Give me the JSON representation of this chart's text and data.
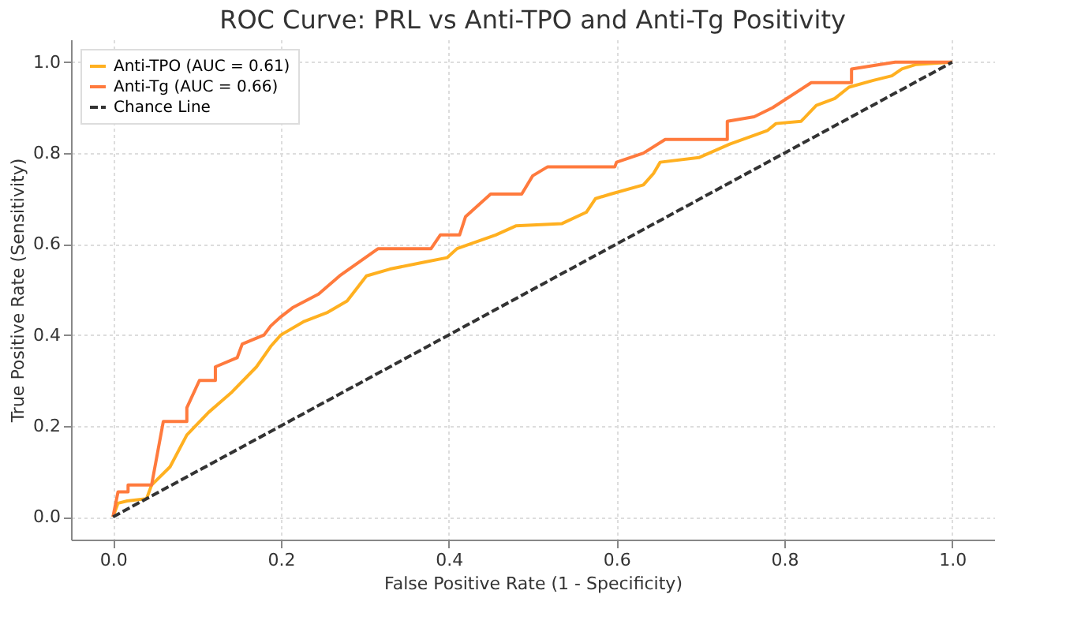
{
  "chart_data": {
    "type": "line",
    "title": "ROC Curve: PRL vs Anti-TPO and Anti-Tg Positivity",
    "xlabel": "False Positive Rate (1 - Specificity)",
    "ylabel": "True Positive Rate (Sensitivity)",
    "xlim": [
      -0.05,
      1.05
    ],
    "ylim": [
      -0.05,
      1.05
    ],
    "xticks": [
      {
        "value": 0,
        "label": "0.0"
      },
      {
        "value": 0.2,
        "label": "0.2"
      },
      {
        "value": 0.4,
        "label": "0.4"
      },
      {
        "value": 0.6,
        "label": "0.6"
      },
      {
        "value": 0.8,
        "label": "0.8"
      },
      {
        "value": 1,
        "label": "1.0"
      }
    ],
    "yticks": [
      {
        "value": 0,
        "label": "0.0"
      },
      {
        "value": 0.2,
        "label": "0.2"
      },
      {
        "value": 0.4,
        "label": "0.4"
      },
      {
        "value": 0.6,
        "label": "0.6"
      },
      {
        "value": 0.8,
        "label": "0.8"
      },
      {
        "value": 1,
        "label": "1.0"
      }
    ],
    "grid": true,
    "legend": "top left",
    "series": [
      {
        "name": "Anti-TPO (AUC = 0.61)",
        "color": "#ffb020",
        "line_style": "solid",
        "x": [
          0,
          0.006,
          0.017,
          0.04,
          0.046,
          0.068,
          0.088,
          0.114,
          0.142,
          0.171,
          0.188,
          0.2,
          0.228,
          0.256,
          0.279,
          0.302,
          0.33,
          0.37,
          0.398,
          0.41,
          0.456,
          0.48,
          0.535,
          0.564,
          0.575,
          0.593,
          0.632,
          0.644,
          0.652,
          0.698,
          0.735,
          0.78,
          0.79,
          0.82,
          0.838,
          0.86,
          0.877,
          0.906,
          0.928,
          0.94,
          0.957,
          1
        ],
        "values": [
          0,
          0.03,
          0.035,
          0.04,
          0.07,
          0.11,
          0.18,
          0.23,
          0.275,
          0.33,
          0.375,
          0.4,
          0.43,
          0.45,
          0.475,
          0.53,
          0.545,
          0.56,
          0.57,
          0.59,
          0.62,
          0.64,
          0.645,
          0.67,
          0.7,
          0.71,
          0.73,
          0.755,
          0.78,
          0.79,
          0.82,
          0.85,
          0.865,
          0.87,
          0.905,
          0.92,
          0.945,
          0.96,
          0.97,
          0.985,
          0.995,
          1
        ]
      },
      {
        "name": "Anti-Tg (AUC = 0.66)",
        "color": "#ff7a3d",
        "line_style": "solid",
        "x": [
          0,
          0.006,
          0.018,
          0.018,
          0.046,
          0.06,
          0.088,
          0.088,
          0.103,
          0.122,
          0.122,
          0.148,
          0.154,
          0.18,
          0.188,
          0.2,
          0.214,
          0.245,
          0.27,
          0.316,
          0.379,
          0.39,
          0.413,
          0.42,
          0.45,
          0.487,
          0.5,
          0.518,
          0.598,
          0.6,
          0.632,
          0.658,
          0.732,
          0.732,
          0.764,
          0.786,
          0.832,
          0.88,
          0.88,
          0.932,
          1
        ],
        "values": [
          0,
          0.055,
          0.055,
          0.07,
          0.07,
          0.21,
          0.21,
          0.24,
          0.3,
          0.3,
          0.33,
          0.35,
          0.38,
          0.4,
          0.42,
          0.44,
          0.46,
          0.49,
          0.53,
          0.59,
          0.59,
          0.62,
          0.62,
          0.66,
          0.71,
          0.71,
          0.75,
          0.77,
          0.77,
          0.78,
          0.8,
          0.83,
          0.83,
          0.87,
          0.88,
          0.9,
          0.955,
          0.955,
          0.985,
          1,
          1
        ]
      },
      {
        "name": "Chance Line",
        "color": "#333333",
        "line_style": "dashed",
        "x": [
          0,
          1
        ],
        "values": [
          0,
          1
        ]
      }
    ]
  }
}
